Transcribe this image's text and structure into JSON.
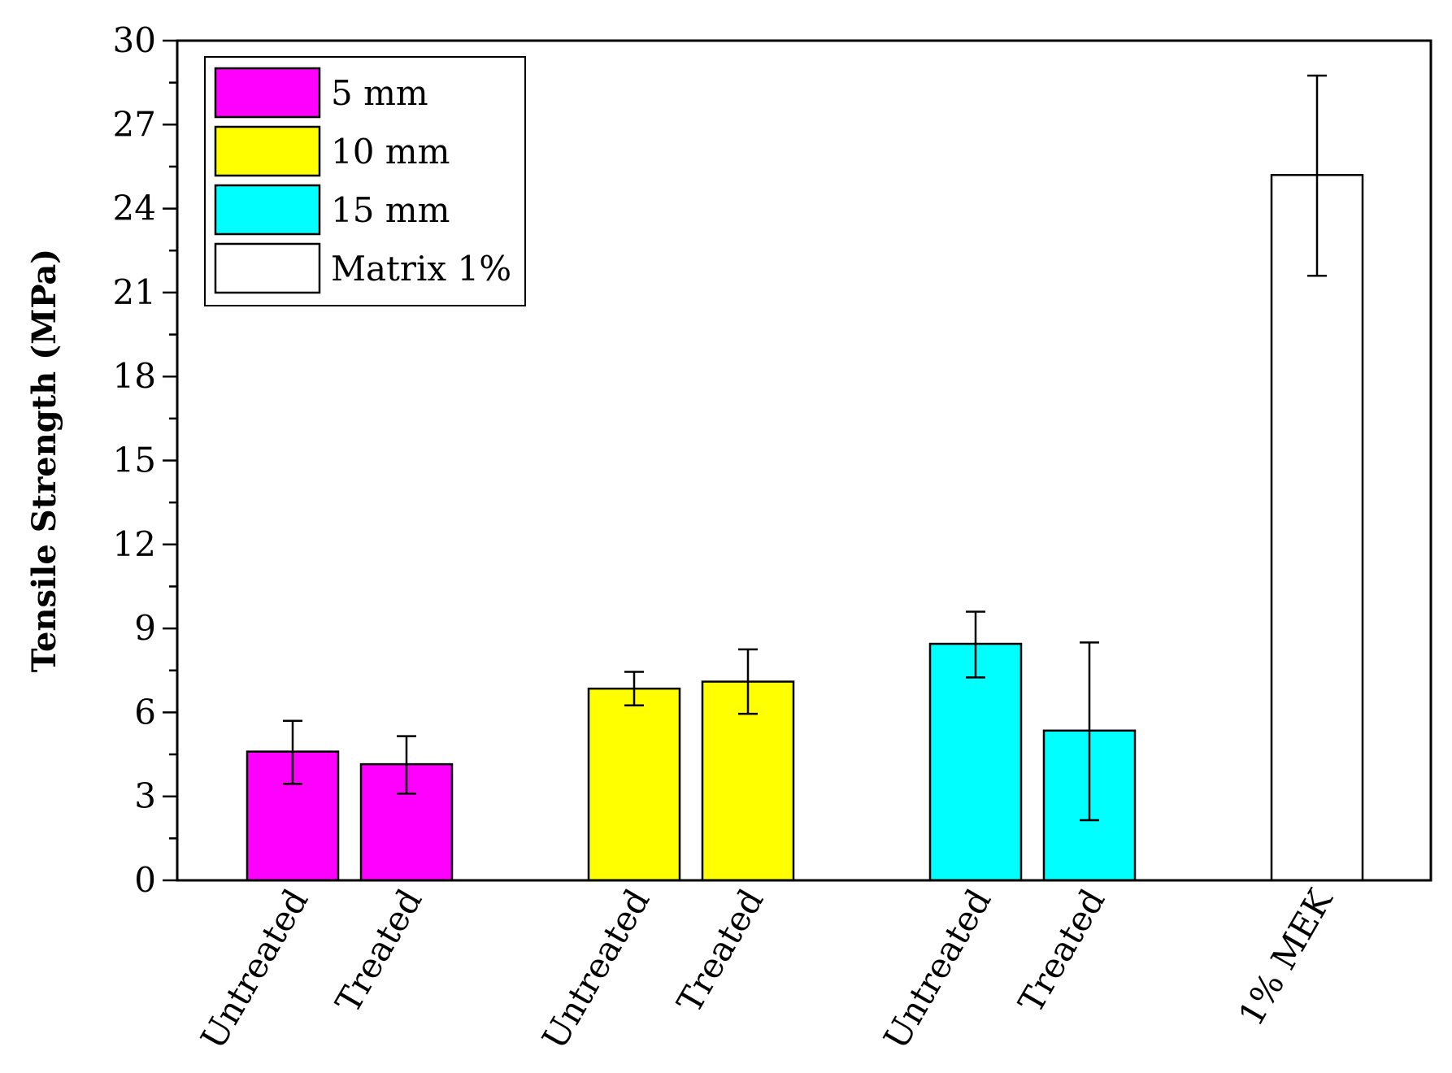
{
  "chart_data": {
    "type": "bar",
    "title": "",
    "xlabel": "",
    "ylabel": "Tensile Strength (MPa)",
    "ylim": [
      0,
      30
    ],
    "yticks": [
      0,
      3,
      6,
      9,
      12,
      15,
      18,
      21,
      24,
      27,
      30
    ],
    "categories": [
      "Untreated",
      "Treated",
      "Untreated",
      "Treated",
      "Untreated",
      "Treated",
      "1% MEK"
    ],
    "bars": [
      {
        "category": "Untreated",
        "group": "5 mm",
        "value": 4.6,
        "err_low": 3.45,
        "err_high": 5.7
      },
      {
        "category": "Treated",
        "group": "5 mm",
        "value": 4.15,
        "err_low": 3.1,
        "err_high": 5.15
      },
      {
        "category": "Untreated",
        "group": "10 mm",
        "value": 6.85,
        "err_low": 6.25,
        "err_high": 7.45
      },
      {
        "category": "Treated",
        "group": "10 mm",
        "value": 7.1,
        "err_low": 5.95,
        "err_high": 8.25
      },
      {
        "category": "Untreated",
        "group": "15 mm",
        "value": 8.45,
        "err_low": 7.25,
        "err_high": 9.6
      },
      {
        "category": "Treated",
        "group": "15 mm",
        "value": 5.35,
        "err_low": 2.15,
        "err_high": 8.5
      },
      {
        "category": "1% MEK",
        "group": "Matrix 1%",
        "value": 25.2,
        "err_low": 21.6,
        "err_high": 28.75
      }
    ],
    "legend": {
      "position": "top-left",
      "entries": [
        {
          "label": "5 mm",
          "color": "#ff00ff"
        },
        {
          "label": "10 mm",
          "color": "#ffff00"
        },
        {
          "label": "15 mm",
          "color": "#00ffff"
        },
        {
          "label": "Matrix 1%",
          "color": "#ffffff"
        }
      ]
    }
  }
}
